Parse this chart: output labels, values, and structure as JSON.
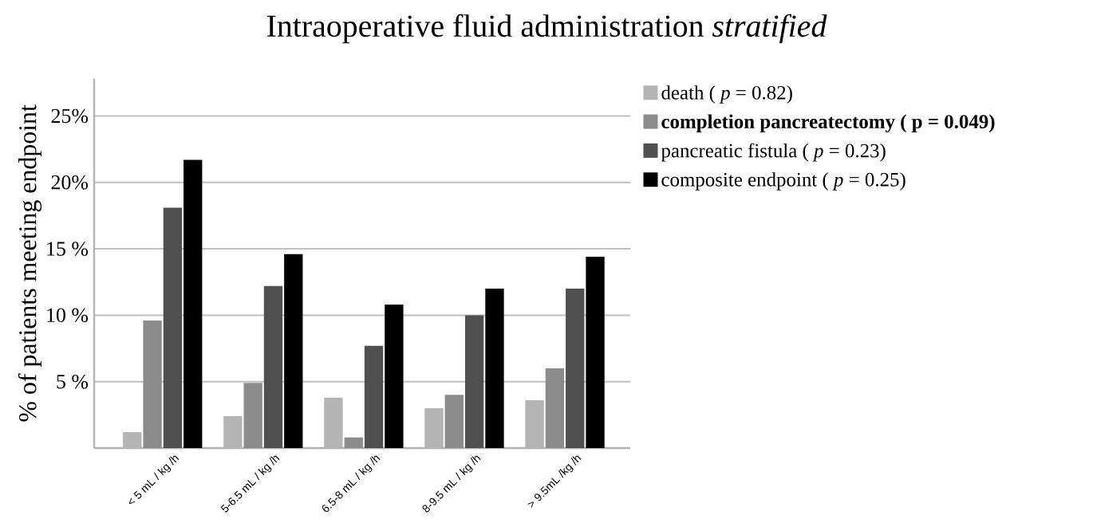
{
  "chart_data": {
    "type": "bar",
    "title": "Intraoperative fluid administration *stratified*",
    "ylabel": "% of patients meeting endpoint",
    "categories": [
      "< 5 mL / kg /h",
      "5-6.5 mL / kg /h",
      "6.5-8 mL / kg /h",
      "8-9.5 mL / kg /h",
      "> 9.5mL /kg /h"
    ],
    "series": [
      {
        "name": "death ( *p* = 0.82)",
        "color": "#b4b4b4",
        "values": [
          1.2,
          2.4,
          3.8,
          3.0,
          3.6
        ]
      },
      {
        "name": "**completion pancreatectomy ( p = 0.049)**",
        "color": "#8c8c8c",
        "values": [
          9.6,
          4.9,
          0.8,
          4.0,
          6.0
        ]
      },
      {
        "name": "pancreatic fistula  ( *p* = 0.23)",
        "color": "#505050",
        "values": [
          18.1,
          12.2,
          7.7,
          10.0,
          12.0
        ]
      },
      {
        "name": "composite endpoint ( *p* = 0.25)",
        "color": "#000000",
        "values": [
          21.7,
          14.6,
          10.8,
          12.0,
          14.4
        ]
      }
    ],
    "ylim": [
      0,
      27.8
    ],
    "yticks": [
      {
        "value": 5,
        "label": "5 %"
      },
      {
        "value": 10,
        "label": "10 %"
      },
      {
        "value": 15,
        "label": "15 %"
      },
      {
        "value": 20,
        "label": "20%"
      },
      {
        "value": 25,
        "label": "25%"
      }
    ],
    "grid": "y",
    "legend": "right"
  }
}
